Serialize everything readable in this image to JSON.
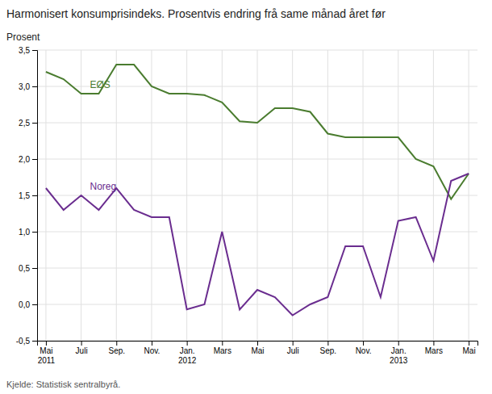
{
  "chart_data": {
    "type": "line",
    "title": "Harmonisert konsumprisindeks. Prosentvis endring frå same månad året før",
    "ylabel": "Prosent",
    "source": "Kjelde: Statistisk sentralbyrå.",
    "categories": [
      "Mai\n2011",
      null,
      "Juli",
      null,
      "Sep.",
      null,
      "Nov.",
      null,
      "Jan.\n2012",
      null,
      "Mars",
      null,
      "Mai",
      null,
      "Juli",
      null,
      "Sep.",
      null,
      "Nov.",
      null,
      "Jan.\n2013",
      null,
      "Mars",
      null,
      "Mai"
    ],
    "series": [
      {
        "name": "EØS",
        "color": "#4a7c2f",
        "values": [
          3.2,
          3.1,
          2.9,
          2.9,
          3.3,
          3.3,
          3.0,
          2.9,
          2.9,
          2.88,
          2.78,
          2.52,
          2.5,
          2.7,
          2.7,
          2.65,
          2.35,
          2.3,
          2.3,
          2.3,
          2.3,
          2.0,
          1.9,
          1.45,
          1.8
        ]
      },
      {
        "name": "Noreg",
        "color": "#6a2d8f",
        "values": [
          1.6,
          1.3,
          1.5,
          1.3,
          1.6,
          1.3,
          1.2,
          1.2,
          -0.07,
          0.0,
          1.0,
          -0.07,
          0.2,
          0.1,
          -0.15,
          0.0,
          0.1,
          0.8,
          0.8,
          0.1,
          1.15,
          1.2,
          0.6,
          1.7,
          1.8
        ]
      }
    ],
    "ylim": [
      -0.5,
      3.5
    ],
    "yticks": [
      {
        "value": -0.5,
        "label": "-0,5"
      },
      {
        "value": 0.0,
        "label": "0,0"
      },
      {
        "value": 0.5,
        "label": "0,5"
      },
      {
        "value": 1.0,
        "label": "1,0"
      },
      {
        "value": 1.5,
        "label": "1,5"
      },
      {
        "value": 2.0,
        "label": "2,0"
      },
      {
        "value": 2.5,
        "label": "2,5"
      },
      {
        "value": 3.0,
        "label": "3,0"
      },
      {
        "value": 3.5,
        "label": "3,5"
      }
    ],
    "grid": true
  }
}
